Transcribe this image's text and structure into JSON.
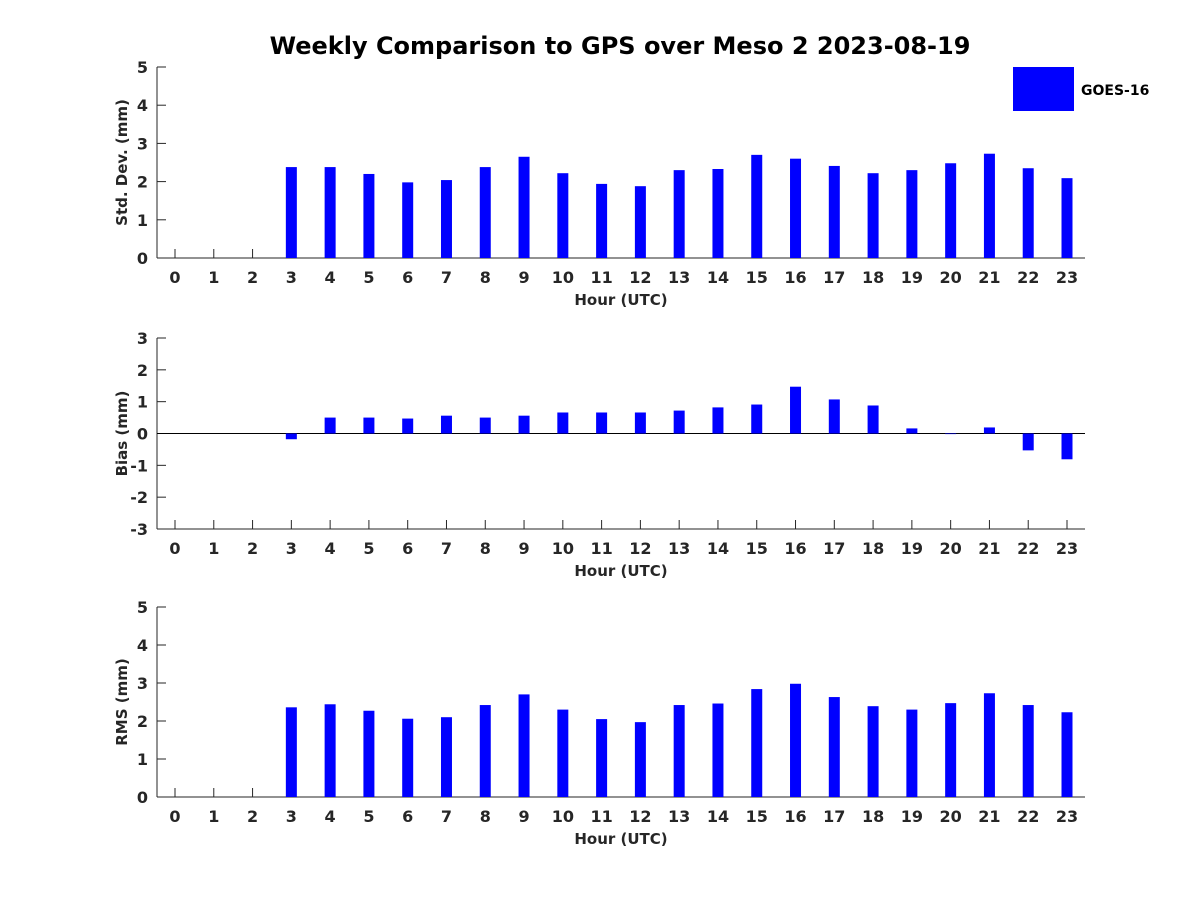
{
  "title": "Weekly Comparison to GPS over Meso 2 2023-08-19",
  "legend": {
    "label": "GOES-16",
    "color": "#0000ff"
  },
  "colors": {
    "bar": "#0000ff",
    "axis": "#262626",
    "background": "#ffffff"
  },
  "chart_data": [
    {
      "type": "bar",
      "name": "std-dev",
      "xlabel": "Hour (UTC)",
      "ylabel": "Std. Dev. (mm)",
      "ylim": [
        0,
        5
      ],
      "yticks": [
        0,
        1,
        2,
        3,
        4,
        5
      ],
      "categories": [
        "0",
        "1",
        "2",
        "3",
        "4",
        "5",
        "6",
        "7",
        "8",
        "9",
        "10",
        "11",
        "12",
        "13",
        "14",
        "15",
        "16",
        "17",
        "18",
        "19",
        "20",
        "21",
        "22",
        "23"
      ],
      "series": [
        {
          "name": "GOES-16",
          "values": [
            null,
            null,
            null,
            2.38,
            2.38,
            2.2,
            1.98,
            2.04,
            2.38,
            2.65,
            2.22,
            1.94,
            1.88,
            2.3,
            2.33,
            2.7,
            2.6,
            2.41,
            2.22,
            2.3,
            2.48,
            2.73,
            2.35,
            2.09
          ]
        }
      ]
    },
    {
      "type": "bar",
      "name": "bias",
      "xlabel": "Hour (UTC)",
      "ylabel": "Bias (mm)",
      "ylim": [
        -3,
        3
      ],
      "yticks": [
        -3,
        -2,
        -1,
        0,
        1,
        2,
        3
      ],
      "categories": [
        "0",
        "1",
        "2",
        "3",
        "4",
        "5",
        "6",
        "7",
        "8",
        "9",
        "10",
        "11",
        "12",
        "13",
        "14",
        "15",
        "16",
        "17",
        "18",
        "19",
        "20",
        "21",
        "22",
        "23"
      ],
      "series": [
        {
          "name": "GOES-16",
          "values": [
            null,
            null,
            null,
            -0.18,
            0.5,
            0.5,
            0.47,
            0.56,
            0.5,
            0.56,
            0.66,
            0.66,
            0.66,
            0.72,
            0.82,
            0.91,
            1.47,
            1.07,
            0.88,
            0.16,
            0.0,
            0.19,
            -0.53,
            -0.81
          ]
        }
      ]
    },
    {
      "type": "bar",
      "name": "rms",
      "xlabel": "Hour (UTC)",
      "ylabel": "RMS (mm)",
      "ylim": [
        0,
        5
      ],
      "yticks": [
        0,
        1,
        2,
        3,
        4,
        5
      ],
      "categories": [
        "0",
        "1",
        "2",
        "3",
        "4",
        "5",
        "6",
        "7",
        "8",
        "9",
        "10",
        "11",
        "12",
        "13",
        "14",
        "15",
        "16",
        "17",
        "18",
        "19",
        "20",
        "21",
        "22",
        "23"
      ],
      "series": [
        {
          "name": "GOES-16",
          "values": [
            null,
            null,
            null,
            2.36,
            2.44,
            2.27,
            2.06,
            2.1,
            2.42,
            2.7,
            2.3,
            2.05,
            1.97,
            2.42,
            2.46,
            2.84,
            2.98,
            2.63,
            2.39,
            2.3,
            2.47,
            2.73,
            2.42,
            2.23
          ]
        }
      ]
    }
  ]
}
